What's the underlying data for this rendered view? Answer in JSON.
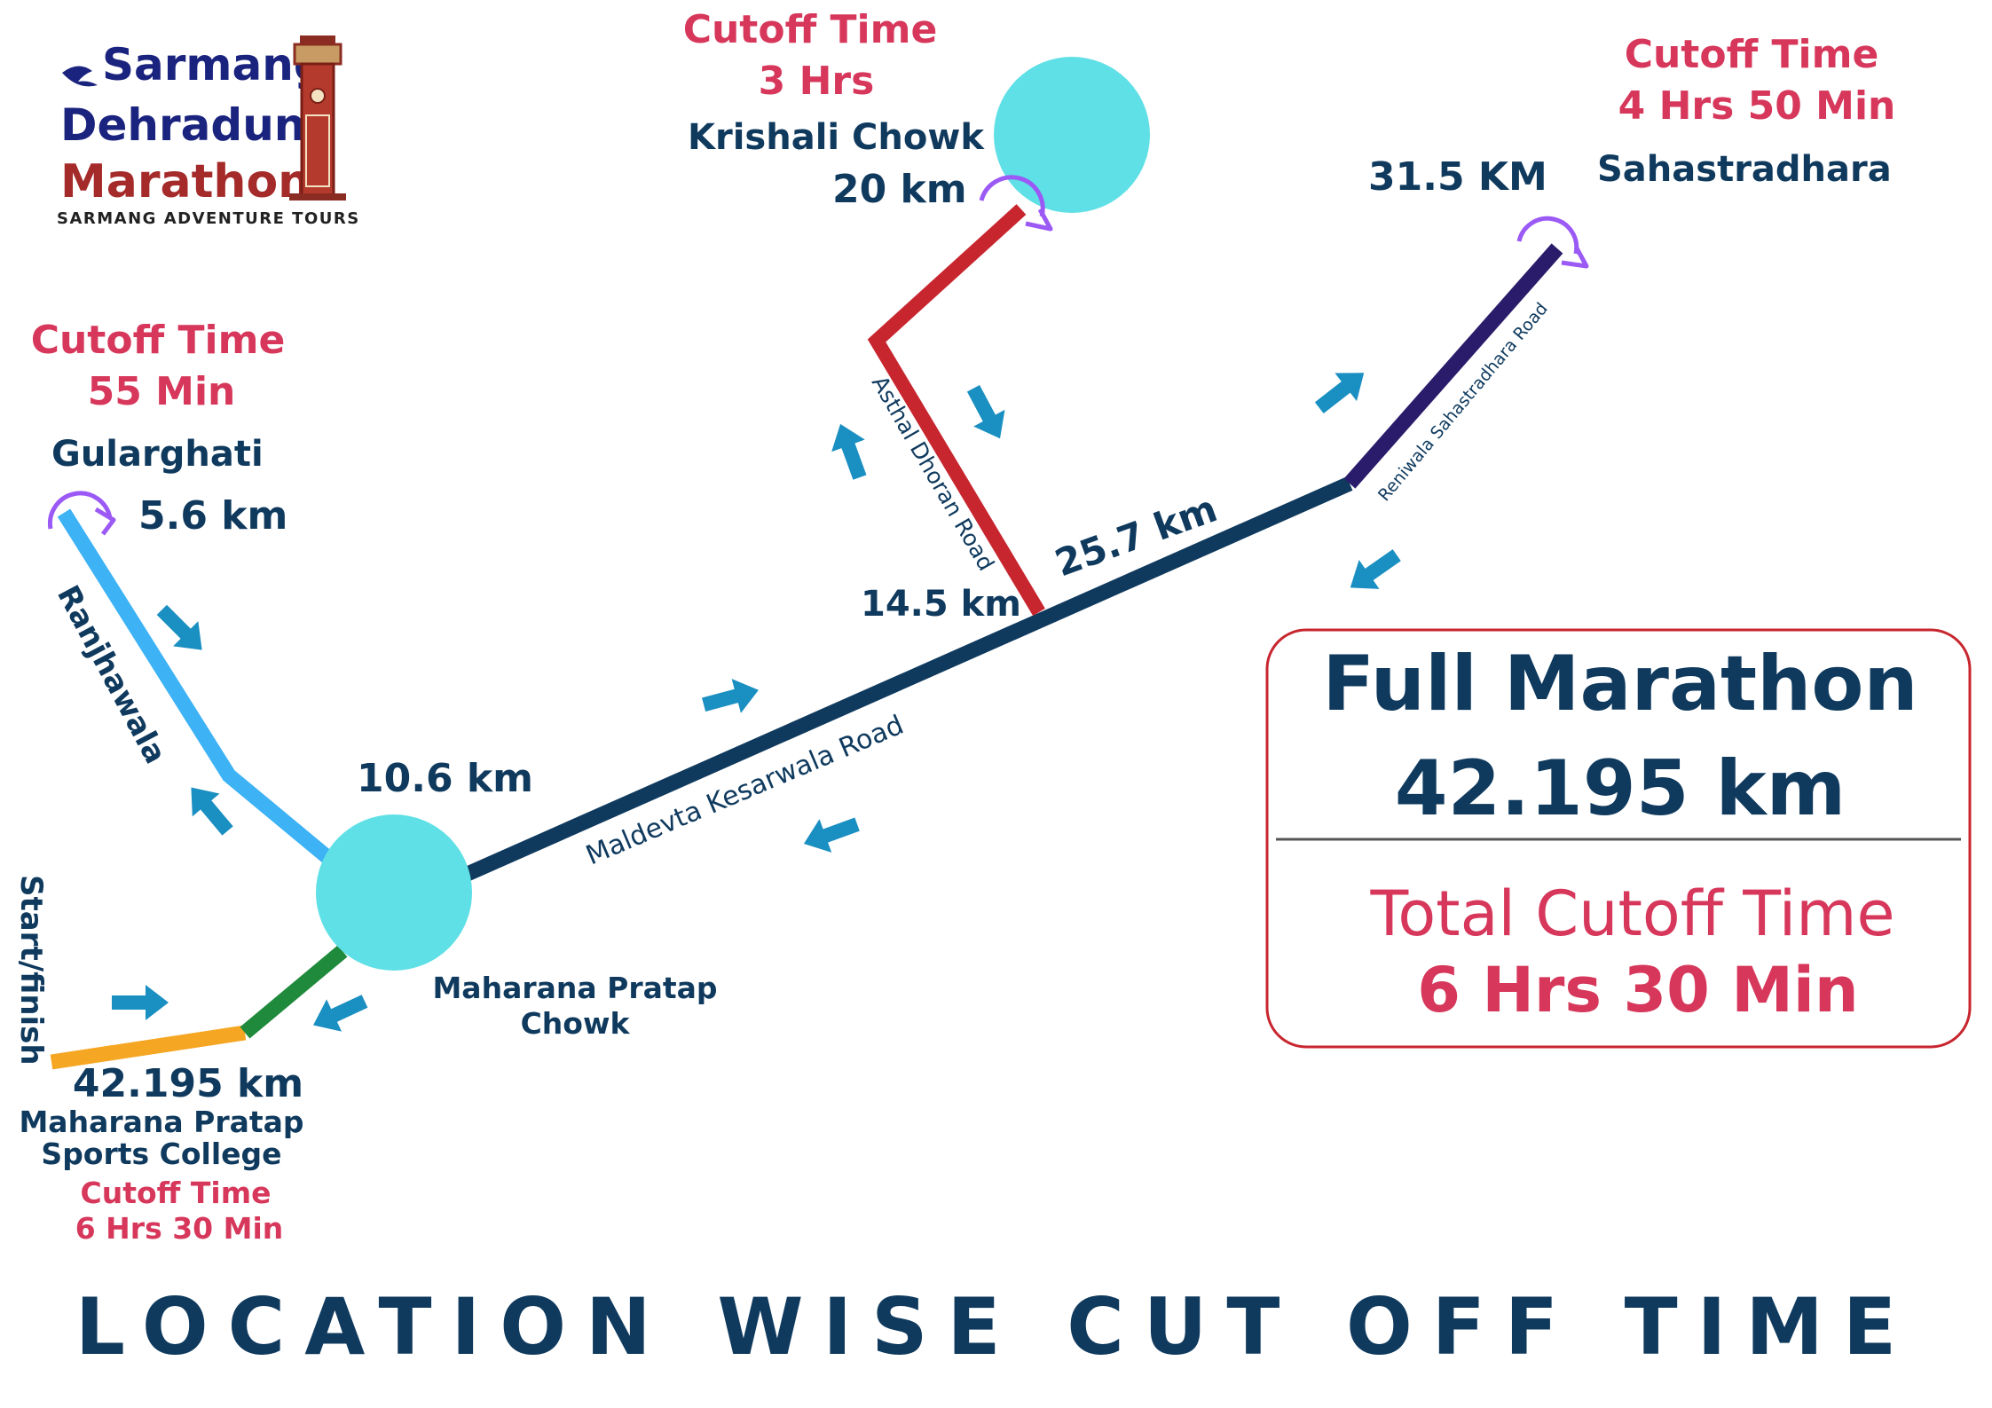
{
  "logo": {
    "line1": "Sarmang",
    "line2": "Dehradun",
    "line3": "Marathon",
    "tagline": "SARMANG ADVENTURE TOURS"
  },
  "checkpoints": {
    "gularghati": {
      "cutoff_label": "Cutoff Time",
      "cutoff": "55 Min",
      "name": "Gularghati",
      "distance": "5.6 km"
    },
    "krishali": {
      "cutoff_label": "Cutoff Time",
      "cutoff": "3 Hrs",
      "name": "Krishali Chowk",
      "distance": "20 km"
    },
    "sahastradhara": {
      "cutoff_label": "Cutoff Time",
      "cutoff": "4 Hrs 50 Min",
      "name": "Sahastradhara",
      "distance": "31.5 KM"
    },
    "maharana_chowk": {
      "distance": "10.6 km",
      "name_line1": "Maharana Pratap",
      "name_line2": "Chowk"
    },
    "finish": {
      "distance": "42.195 km",
      "name_line1": "Maharana Pratap",
      "name_line2": "Sports College",
      "cutoff_label": "Cutoff Time",
      "cutoff": "6 Hrs 30 Min",
      "start_label": "Start/finish"
    },
    "junction": {
      "distance": "14.5 km"
    },
    "km25": {
      "distance": "25.7 km"
    }
  },
  "roads": {
    "ranjhawala": "Ranjhawala",
    "maldevta": "Maldevta Kesarwala Road",
    "asthal": "Asthal Dhoran Road",
    "reniwala": "Reniwala Sahastradhara Road"
  },
  "summary": {
    "heading": "Full Marathon",
    "distance": "42.195 km",
    "cutoff_label": "Total Cutoff Time",
    "cutoff_value": "6 Hrs 30 Min"
  },
  "title": "Location wise cut off time",
  "colors": {
    "navy": "#0f3a5e",
    "cutoff_red": "#d6375a",
    "node_cyan": "#5fe0e6",
    "ranjhawala_segment": "#3db2f5",
    "asthal_segment": "#c8262f",
    "reniwala_segment": "#2a1c6b",
    "maldevta_segment": "#0f3a5e",
    "start_segment": "#f5a623",
    "link_segment": "#1f8a3b",
    "direction_arrow": "#1a8fc1",
    "turnaround_loop": "#9b59f5",
    "box_border": "#c8262f"
  },
  "icons": {
    "direction": "arrow-icon",
    "turnaround": "u-turn-icon",
    "logo_runner": "runner-swoosh-icon",
    "logo_tower": "clock-tower-icon"
  }
}
